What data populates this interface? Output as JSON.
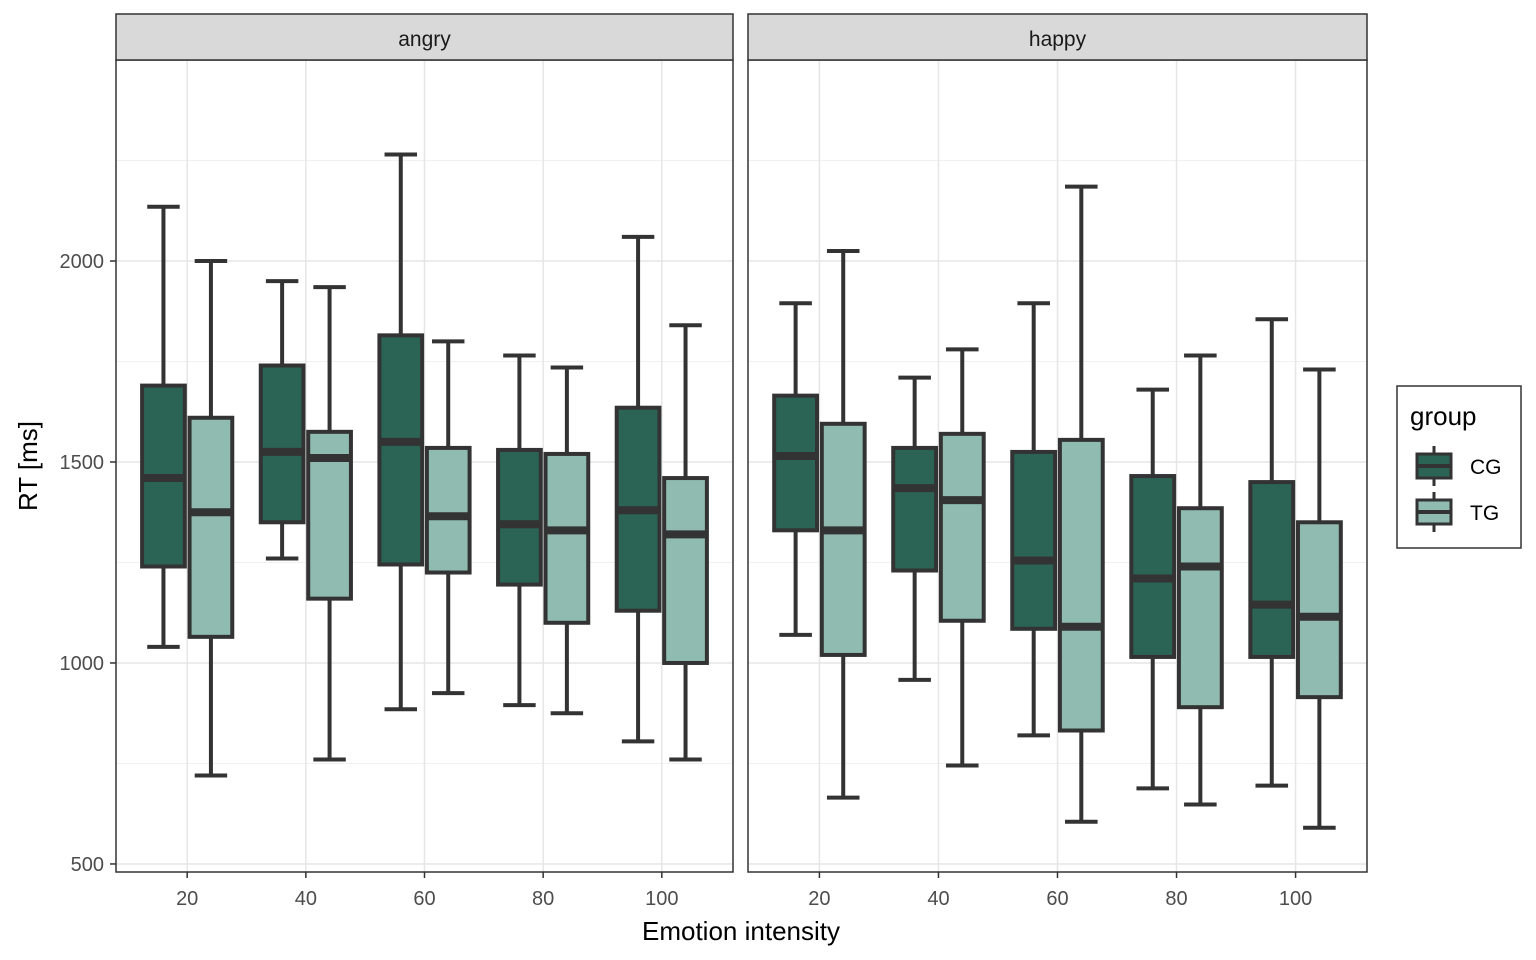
{
  "chart_data": {
    "type": "boxplot",
    "xlabel": "Emotion intensity",
    "ylabel": "RT [ms]",
    "ylim": [
      480,
      2500
    ],
    "yticks": [
      500,
      1000,
      1500,
      2000
    ],
    "categories": [
      "20",
      "40",
      "60",
      "80",
      "100"
    ],
    "grid": true,
    "legend": {
      "title": "group",
      "position": "right"
    },
    "colors": {
      "CG": "#2b6355",
      "TG": "#8fbbb0",
      "outline": "#333333"
    },
    "panels": [
      {
        "label": "angry",
        "series": [
          {
            "name": "CG",
            "boxes": [
              {
                "min": 1040,
                "q1": 1240,
                "median": 1460,
                "q3": 1690,
                "max": 2135
              },
              {
                "min": 1260,
                "q1": 1350,
                "median": 1525,
                "q3": 1740,
                "max": 1950
              },
              {
                "min": 885,
                "q1": 1245,
                "median": 1550,
                "q3": 1815,
                "max": 2265
              },
              {
                "min": 895,
                "q1": 1195,
                "median": 1345,
                "q3": 1530,
                "max": 1765
              },
              {
                "min": 805,
                "q1": 1130,
                "median": 1380,
                "q3": 1635,
                "max": 2060
              }
            ]
          },
          {
            "name": "TG",
            "boxes": [
              {
                "min": 720,
                "q1": 1065,
                "median": 1375,
                "q3": 1610,
                "max": 2000
              },
              {
                "min": 760,
                "q1": 1160,
                "median": 1510,
                "q3": 1575,
                "max": 1935
              },
              {
                "min": 925,
                "q1": 1225,
                "median": 1365,
                "q3": 1535,
                "max": 1800
              },
              {
                "min": 875,
                "q1": 1100,
                "median": 1330,
                "q3": 1520,
                "max": 1735
              },
              {
                "min": 760,
                "q1": 1000,
                "median": 1320,
                "q3": 1460,
                "max": 1840
              }
            ]
          }
        ]
      },
      {
        "label": "happy",
        "series": [
          {
            "name": "CG",
            "boxes": [
              {
                "min": 1070,
                "q1": 1330,
                "median": 1515,
                "q3": 1665,
                "max": 1895
              },
              {
                "min": 958,
                "q1": 1230,
                "median": 1435,
                "q3": 1535,
                "max": 1710
              },
              {
                "min": 820,
                "q1": 1085,
                "median": 1255,
                "q3": 1525,
                "max": 1895
              },
              {
                "min": 688,
                "q1": 1015,
                "median": 1210,
                "q3": 1465,
                "max": 1680
              },
              {
                "min": 695,
                "q1": 1015,
                "median": 1145,
                "q3": 1450,
                "max": 1855
              }
            ]
          },
          {
            "name": "TG",
            "boxes": [
              {
                "min": 665,
                "q1": 1020,
                "median": 1330,
                "q3": 1595,
                "max": 2025
              },
              {
                "min": 745,
                "q1": 1105,
                "median": 1405,
                "q3": 1570,
                "max": 1780
              },
              {
                "min": 605,
                "q1": 832,
                "median": 1090,
                "q3": 1555,
                "max": 2185
              },
              {
                "min": 648,
                "q1": 890,
                "median": 1240,
                "q3": 1385,
                "max": 1765
              },
              {
                "min": 590,
                "q1": 915,
                "median": 1115,
                "q3": 1350,
                "max": 1730
              }
            ]
          }
        ]
      }
    ]
  }
}
